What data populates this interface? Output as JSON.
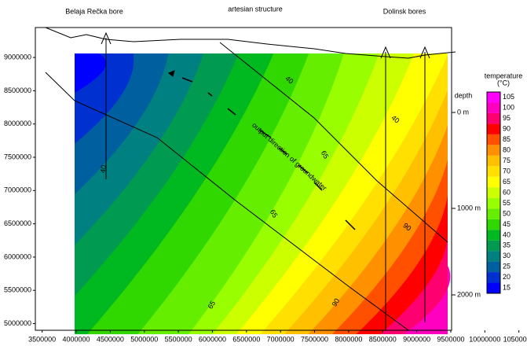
{
  "chart_data": {
    "type": "contour",
    "title": "artesian structure",
    "annotations": [
      "Belaja Rečka bore",
      "Dolinsk bores",
      "output direction of groundwater"
    ],
    "xlim": [
      3400000,
      10550000
    ],
    "xticks": [
      3500000,
      4000000,
      4500000,
      5000000,
      5500000,
      6000000,
      6500000,
      7000000,
      7500000,
      8000000,
      8500000,
      9000000,
      9500000,
      10000000,
      10500000
    ],
    "ylim": [
      4900000,
      9450000
    ],
    "yticks": [
      5000000,
      5500000,
      6000000,
      6500000,
      7000000,
      7500000,
      8000000,
      8500000,
      9000000
    ],
    "contour_labels": [
      40,
      40,
      65,
      65,
      90,
      90,
      65,
      40
    ],
    "depth_axis": {
      "title": "depth",
      "ticks": [
        "0 m",
        "1000 m",
        "2000 m"
      ]
    },
    "colorbar": {
      "title": [
        "temperature",
        "(°C)"
      ],
      "levels": [
        15,
        20,
        25,
        30,
        35,
        40,
        45,
        50,
        55,
        60,
        65,
        70,
        75,
        80,
        85,
        90,
        95,
        100,
        105
      ],
      "colors": [
        "#0000ff",
        "#0030d0",
        "#00609f",
        "#008080",
        "#009a50",
        "#00b820",
        "#30d800",
        "#66ee00",
        "#99ff00",
        "#ccff00",
        "#ffff00",
        "#ffe000",
        "#ffc000",
        "#ff9000",
        "#ff5000",
        "#ff0000",
        "#ff0070",
        "#ff00c0",
        "#ff00ff"
      ]
    }
  }
}
